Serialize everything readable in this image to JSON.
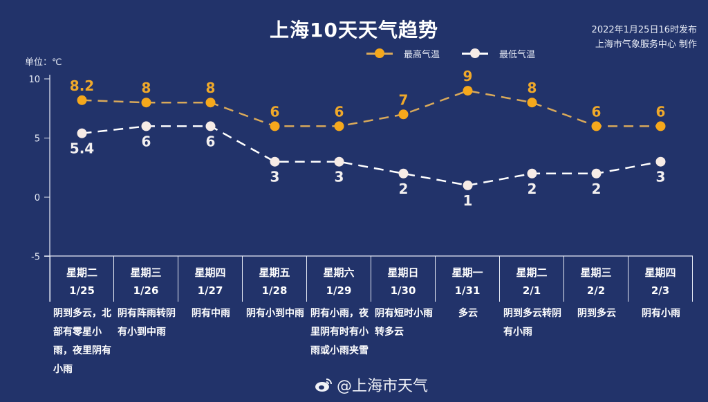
{
  "header": {
    "title": "上海10天天气趋势",
    "publish_time": "2022年1月25日16时发布",
    "producer": "上海市气象服务中心 制作"
  },
  "unit_label": "单位：℃",
  "legend": [
    {
      "label": "最高气温",
      "color": "#f5a81c"
    },
    {
      "label": "最低气温",
      "color": "#f7ece6"
    }
  ],
  "days": [
    {
      "dow": "星期二",
      "date": "1/25",
      "desc": "阴到多云，北部有零星小雨，夜里阴有小雨"
    },
    {
      "dow": "星期三",
      "date": "1/26",
      "desc": "阴有阵雨转阴有小到中雨"
    },
    {
      "dow": "星期四",
      "date": "1/27",
      "desc": "阴有中雨"
    },
    {
      "dow": "星期五",
      "date": "1/28",
      "desc": "阴有小到中雨"
    },
    {
      "dow": "星期六",
      "date": "1/29",
      "desc": "阴有小雨，夜里阴有时有小雨或小雨夹雪"
    },
    {
      "dow": "星期日",
      "date": "1/30",
      "desc": "阴有短时小雨转多云"
    },
    {
      "dow": "星期一",
      "date": "1/31",
      "desc": "多云"
    },
    {
      "dow": "星期二",
      "date": "2/1",
      "desc": "阴到多云转阴有小雨"
    },
    {
      "dow": "星期三",
      "date": "2/2",
      "desc": "阴到多云"
    },
    {
      "dow": "星期四",
      "date": "2/3",
      "desc": "阴有小雨"
    }
  ],
  "watermark": "@上海市天气",
  "chart_data": {
    "type": "line",
    "title": "上海10天天气趋势",
    "ylabel": "单位：℃",
    "ylim": [
      -5,
      10
    ],
    "yticks": [
      10,
      5,
      0,
      -5
    ],
    "categories": [
      "1/25",
      "1/26",
      "1/27",
      "1/28",
      "1/29",
      "1/30",
      "1/31",
      "2/1",
      "2/2",
      "2/3"
    ],
    "series": [
      {
        "name": "最高气温",
        "color": "#f5a81c",
        "values": [
          8.2,
          8,
          8,
          6,
          6,
          7,
          9,
          8,
          6,
          6
        ],
        "labels": [
          "8.2",
          "8",
          "8",
          "6",
          "6",
          "7",
          "9",
          "8",
          "6",
          "6"
        ]
      },
      {
        "name": "最低气温",
        "color": "#f7ece6",
        "values": [
          5.4,
          6,
          6,
          3,
          3,
          2,
          1,
          2,
          2,
          3
        ],
        "labels": [
          "5.4",
          "6",
          "6",
          "3",
          "3",
          "2",
          "1",
          "2",
          "2",
          "3"
        ]
      }
    ],
    "legend_position": "top-right",
    "grid": false,
    "line_style": "dashed"
  }
}
